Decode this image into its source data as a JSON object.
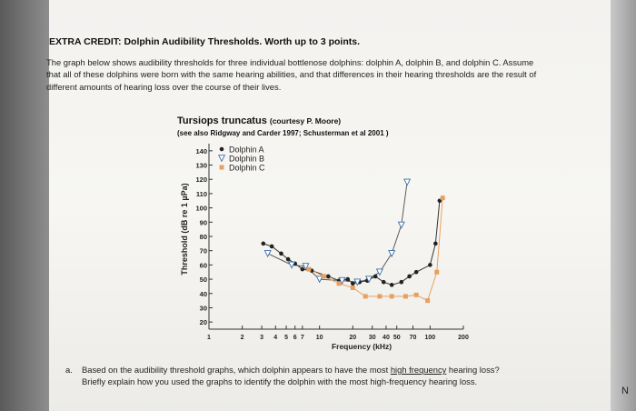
{
  "heading": "EXTRA CREDIT: Dolphin Audibility Thresholds. Worth up to 3 points.",
  "intro": "The graph below shows audibility thresholds for three individual bottlenose dolphins: dolphin A, dolphin B, and dolphin C. Assume that all of these dolphins were born with the same hearing abilities, and that differences in their hearing thresholds are the result of different amounts of hearing loss over the course of their lives.",
  "question": {
    "label": "a.",
    "text_before": "Based on the audibility threshold graphs, which dolphin appears to have the most ",
    "underlined": "high frequency",
    "text_after": " hearing loss? Briefly explain how you used the graphs to identify the dolphin with the most high-frequency hearing loss."
  },
  "edge_text": "N",
  "chart_data": {
    "type": "scatter",
    "title": "Tursiops truncatus",
    "title_note": "(courtesy P. Moore)",
    "subtitle": "(see also Ridgway and Carder 1997; Schusterman et al 2001 )",
    "xlabel": "Frequency (kHz)",
    "ylabel": "Threshold (dB re 1 µPa)",
    "x_scale": "log",
    "xlim": [
      1,
      200
    ],
    "ylim": [
      15,
      145
    ],
    "x_ticks": [
      "1",
      "2",
      "3",
      "4",
      "5",
      "6",
      "7",
      "10",
      "20",
      "30",
      "40",
      "50",
      "70",
      "100",
      "200"
    ],
    "y_ticks": [
      "20",
      "30",
      "40",
      "50",
      "60",
      "70",
      "80",
      "90",
      "100",
      "110",
      "120",
      "130",
      "140"
    ],
    "legend_position": "top-left",
    "series": [
      {
        "name": "Dolphin A",
        "marker": "dot",
        "color": "#222222",
        "points": [
          [
            3.1,
            75
          ],
          [
            3.7,
            73
          ],
          [
            4.5,
            68
          ],
          [
            5.2,
            64
          ],
          [
            6,
            61
          ],
          [
            7,
            57
          ],
          [
            8.5,
            56
          ],
          [
            12,
            52
          ],
          [
            15,
            49
          ],
          [
            18,
            50
          ],
          [
            20,
            47
          ],
          [
            23,
            48
          ],
          [
            27,
            49
          ],
          [
            32,
            52
          ],
          [
            38,
            48
          ],
          [
            45,
            46
          ],
          [
            55,
            48
          ],
          [
            65,
            52
          ],
          [
            75,
            55
          ],
          [
            100,
            60
          ],
          [
            112,
            75
          ],
          [
            122,
            105
          ]
        ]
      },
      {
        "name": "Dolphin B",
        "marker": "triangle-down",
        "color": "#3a6ea8",
        "points": [
          [
            3.4,
            68
          ],
          [
            5.6,
            60
          ],
          [
            7.5,
            59
          ],
          [
            10,
            50
          ],
          [
            16,
            49
          ],
          [
            22,
            48
          ],
          [
            28,
            50
          ],
          [
            35,
            55
          ],
          [
            45,
            68
          ],
          [
            55,
            88
          ],
          [
            62,
            118
          ]
        ]
      },
      {
        "name": "Dolphin C",
        "marker": "square",
        "color": "#e8a060",
        "points": [
          [
            8,
            57
          ],
          [
            11,
            52
          ],
          [
            15,
            47
          ],
          [
            20,
            44
          ],
          [
            26,
            38
          ],
          [
            35,
            38
          ],
          [
            45,
            38
          ],
          [
            60,
            38
          ],
          [
            75,
            39
          ],
          [
            95,
            35
          ],
          [
            115,
            55
          ],
          [
            130,
            107
          ]
        ]
      }
    ]
  }
}
